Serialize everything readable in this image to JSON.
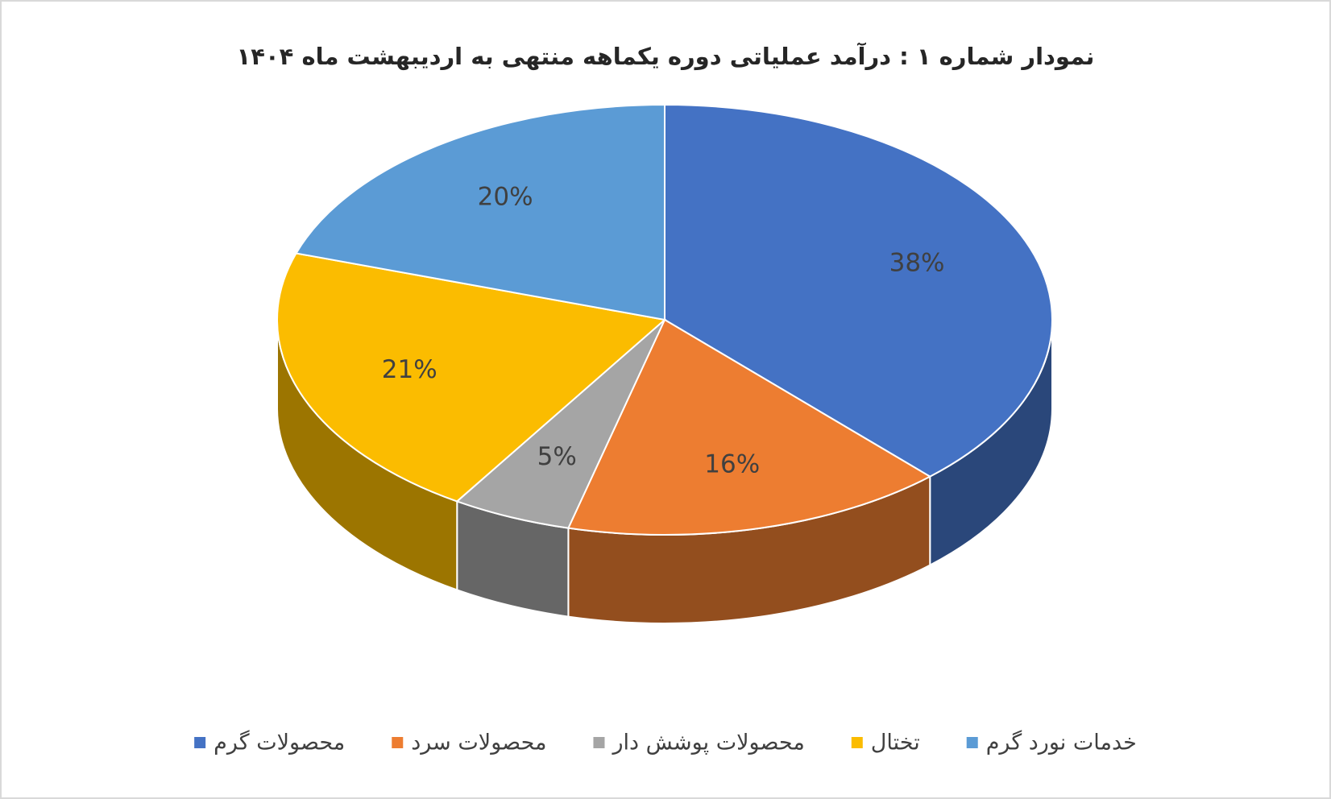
{
  "chart_data": {
    "type": "pie3d",
    "title": "نمودار شماره ۱ : درآمد عملیاتی دوره یکماهه منتهی به اردیبهشت ماه ۱۴۰۴",
    "categories": [
      "محصولات گرم",
      "محصولات سرد",
      "محصولات پوشش دار",
      "تختال",
      "خدمات نورد گرم"
    ],
    "values": [
      38,
      16,
      5,
      21,
      20
    ],
    "value_labels": [
      "38%",
      "16%",
      "5%",
      "21%",
      "20%"
    ],
    "colors": [
      "#4472c4",
      "#ed7d31",
      "#a5a5a5",
      "#fbbc00",
      "#5b9bd5"
    ],
    "legend": "bottom"
  }
}
